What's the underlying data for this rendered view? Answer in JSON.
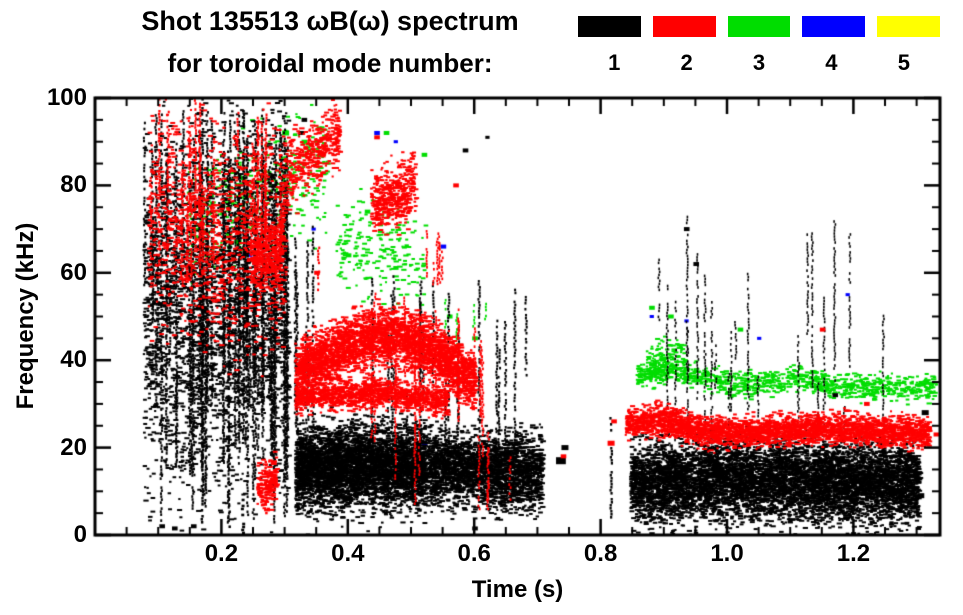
{
  "header": {
    "title_line1": "Shot 135513 ωB(ω) spectrum",
    "title_line2": "for toroidal mode number:"
  },
  "legend": {
    "modes": [
      {
        "label": "1",
        "color": "#000000"
      },
      {
        "label": "2",
        "color": "#ff0000"
      },
      {
        "label": "3",
        "color": "#00dd00"
      },
      {
        "label": "4",
        "color": "#0000ff"
      },
      {
        "label": "5",
        "color": "#ffff00"
      }
    ]
  },
  "chart_data": {
    "type": "scatter",
    "title": "Shot 135513 ωB(ω) spectrum for toroidal mode number",
    "xlabel": "Time (s)",
    "ylabel": "Frequency (kHz)",
    "xlim": [
      0,
      1.337
    ],
    "ylim": [
      0,
      100
    ],
    "xticks": [
      0.2,
      0.4,
      0.6,
      0.8,
      1.0,
      1.2
    ],
    "xtick_labels": [
      "0.2",
      "0.4",
      "0.6",
      "0.8",
      "1.0",
      "1.2"
    ],
    "x_minor_step": 0.05,
    "yticks": [
      0,
      20,
      40,
      60,
      80,
      100
    ],
    "ytick_labels": [
      "0",
      "20",
      "40",
      "60",
      "80",
      "100"
    ],
    "y_minor_step": 5,
    "grid": false,
    "legend_position": "top-right",
    "draw_order": [
      "n=5",
      "n=4",
      "n=3",
      "n=1",
      "n=2"
    ],
    "series": [
      {
        "name": "n=1",
        "mode": 1,
        "color": "#000000",
        "clouds": [
          {
            "t0": 0.075,
            "t1": 0.305,
            "center": [
              [
                0.075,
                50
              ],
              [
                0.305,
                55
              ]
            ],
            "spread": 20,
            "n": 2600,
            "size": 2
          },
          {
            "t0": 0.315,
            "t1": 0.705,
            "center": [
              [
                0.315,
                15
              ],
              [
                0.4,
                16
              ],
              [
                0.5,
                16
              ],
              [
                0.6,
                15
              ],
              [
                0.705,
                14
              ]
            ],
            "spread": 4.2,
            "n": 5200,
            "size": 2
          },
          {
            "t0": 0.315,
            "t1": 0.52,
            "center": [
              [
                0.315,
                15
              ],
              [
                0.52,
                16
              ]
            ],
            "spread": 5.2,
            "n": 1500,
            "size": 2
          },
          {
            "t0": 0.845,
            "t1": 1.302,
            "center": [
              [
                0.845,
                12
              ],
              [
                1.0,
                13
              ],
              [
                1.302,
                12
              ]
            ],
            "spread": 4.5,
            "n": 7000,
            "size": 2
          }
        ],
        "streak_groups": [
          {
            "t0": 0.075,
            "t1": 0.305,
            "count": 70,
            "fmin": 2,
            "fmax": 99,
            "minspan": 15,
            "maxspan": 80,
            "w": 2
          },
          {
            "t0": 0.315,
            "t1": 0.35,
            "count": 6,
            "fmin": 18,
            "fmax": 76,
            "minspan": 25,
            "maxspan": 50,
            "w": 2
          },
          {
            "t0": 0.43,
            "t1": 0.72,
            "count": 20,
            "fmin": 10,
            "fmax": 62,
            "minspan": 15,
            "maxspan": 45,
            "w": 2
          },
          {
            "t0": 0.86,
            "t1": 1.28,
            "count": 24,
            "fmin": 12,
            "fmax": 74,
            "minspan": 8,
            "maxspan": 40,
            "w": 1.6
          }
        ],
        "streaks": [
          {
            "t": 0.095,
            "f0": 30,
            "f1": 97,
            "w": 2
          },
          {
            "t": 0.168,
            "f0": 3,
            "f1": 100,
            "w": 2.4
          },
          {
            "t": 0.176,
            "f0": 30,
            "f1": 97,
            "w": 2
          },
          {
            "t": 0.21,
            "f0": 2,
            "f1": 88,
            "w": 2.4
          },
          {
            "t": 0.232,
            "f0": 0,
            "f1": 9,
            "w": 3
          },
          {
            "t": 0.25,
            "f0": 35,
            "f1": 65,
            "w": 2
          },
          {
            "t": 0.815,
            "f0": 4,
            "f1": 27,
            "w": 2.2
          }
        ],
        "dots": [
          [
            0.735,
            17,
            7
          ],
          [
            0.742,
            20,
            5
          ],
          [
            1.312,
            28,
            5
          ],
          [
            1.305,
            9,
            5
          ],
          [
            0.105,
            2,
            4
          ],
          [
            0.125,
            1.5,
            4
          ],
          [
            0.155,
            2,
            4
          ],
          [
            0.6,
            1.5,
            4
          ],
          [
            0.64,
            13,
            4
          ],
          [
            1.17,
            32,
            4
          ],
          [
            0.95,
            62,
            4
          ],
          [
            0.935,
            70,
            4
          ],
          [
            0.585,
            88,
            4
          ],
          [
            0.62,
            91,
            3
          ],
          [
            0.325,
            92,
            4
          ],
          [
            0.33,
            95,
            4
          ]
        ]
      },
      {
        "name": "n=2",
        "mode": 2,
        "color": "#ff0000",
        "clouds": [
          {
            "t0": 0.082,
            "t1": 0.3,
            "center": [
              [
                0.082,
                72
              ],
              [
                0.3,
                66
              ]
            ],
            "spread": 12,
            "n": 1100,
            "size": 2
          },
          {
            "t0": 0.245,
            "t1": 0.295,
            "center": [
              [
                0.245,
                64
              ],
              [
                0.295,
                66
              ]
            ],
            "spread": 4,
            "n": 350,
            "size": 2
          },
          {
            "t0": 0.295,
            "t1": 0.385,
            "center": [
              [
                0.295,
                82
              ],
              [
                0.385,
                92
              ]
            ],
            "spread": 4,
            "n": 420,
            "size": 2
          },
          {
            "t0": 0.435,
            "t1": 0.505,
            "center": [
              [
                0.435,
                76
              ],
              [
                0.505,
                80
              ]
            ],
            "spread": 3.5,
            "n": 420,
            "size": 2
          },
          {
            "t0": 0.315,
            "t1": 0.6,
            "center": [
              [
                0.315,
                37
              ],
              [
                0.4,
                44
              ],
              [
                0.47,
                46
              ],
              [
                0.53,
                43
              ],
              [
                0.6,
                35
              ]
            ],
            "spread": 3.2,
            "n": 3200,
            "size": 2
          },
          {
            "t0": 0.315,
            "t1": 0.555,
            "center": [
              [
                0.315,
                31.5
              ],
              [
                0.45,
                33
              ],
              [
                0.555,
                30.5
              ]
            ],
            "spread": 1.6,
            "n": 1200,
            "size": 2
          },
          {
            "t0": 0.255,
            "t1": 0.285,
            "center": [
              [
                0.255,
                11
              ],
              [
                0.285,
                13
              ]
            ],
            "spread": 2.5,
            "n": 180,
            "size": 2
          },
          {
            "t0": 0.838,
            "t1": 1.318,
            "center": [
              [
                0.838,
                26
              ],
              [
                0.9,
                26.5
              ],
              [
                0.96,
                23.5
              ],
              [
                1.05,
                24
              ],
              [
                1.15,
                24.5
              ],
              [
                1.25,
                24
              ],
              [
                1.318,
                23.5
              ]
            ],
            "spread": 1.7,
            "n": 3000,
            "size": 2
          }
        ],
        "streak_groups": [
          {
            "t0": 0.085,
            "t1": 0.3,
            "count": 26,
            "fmin": 55,
            "fmax": 100,
            "minspan": 8,
            "maxspan": 38,
            "w": 2
          },
          {
            "t0": 0.4,
            "t1": 0.645,
            "count": 16,
            "fmin": 5,
            "fmax": 56,
            "minspan": 12,
            "maxspan": 45,
            "w": 1.8
          },
          {
            "t0": 0.52,
            "t1": 0.6,
            "count": 6,
            "fmin": 55,
            "fmax": 70,
            "minspan": 5,
            "maxspan": 12,
            "w": 1.8
          }
        ],
        "streaks": [
          {
            "t": 0.1,
            "f0": 60,
            "f1": 100,
            "w": 2.2
          },
          {
            "t": 0.268,
            "f0": 5,
            "f1": 17,
            "w": 2.5
          },
          {
            "t": 0.352,
            "f0": 56,
            "f1": 66,
            "w": 2
          },
          {
            "t": 0.62,
            "f0": 6,
            "f1": 20,
            "w": 2
          },
          {
            "t": 0.655,
            "f0": 8,
            "f1": 18,
            "w": 1.8
          }
        ],
        "dots": [
          [
            0.815,
            21,
            5
          ],
          [
            0.82,
            26,
            4
          ],
          [
            1.15,
            47,
            4
          ],
          [
            1.22,
            30,
            4
          ],
          [
            0.74,
            18,
            4
          ],
          [
            1.33,
            23,
            4
          ],
          [
            0.57,
            80,
            4
          ],
          [
            0.445,
            91,
            4
          ],
          [
            0.35,
            60,
            4
          ]
        ]
      },
      {
        "name": "n=3",
        "mode": 3,
        "color": "#00dd00",
        "clouds": [
          {
            "t0": 0.145,
            "t1": 0.365,
            "center": [
              [
                0.145,
                72
              ],
              [
                0.25,
                78
              ],
              [
                0.365,
                86
              ]
            ],
            "spread": 7,
            "n": 420,
            "size": 2
          },
          {
            "t0": 0.38,
            "t1": 0.52,
            "center": [
              [
                0.38,
                68
              ],
              [
                0.52,
                63
              ]
            ],
            "spread": 5,
            "n": 200,
            "size": 2
          },
          {
            "t0": 0.855,
            "t1": 1.33,
            "center": [
              [
                0.855,
                37
              ],
              [
                0.92,
                38
              ],
              [
                1.0,
                34.5
              ],
              [
                1.1,
                36
              ],
              [
                1.2,
                34
              ],
              [
                1.33,
                34
              ]
            ],
            "spread": 1.4,
            "n": 1000,
            "size": 2
          },
          {
            "t0": 0.87,
            "t1": 0.93,
            "center": [
              [
                0.87,
                40
              ],
              [
                0.93,
                42
              ]
            ],
            "spread": 2,
            "n": 120,
            "size": 2
          }
        ],
        "streak_groups": [
          {
            "t0": 0.55,
            "t1": 0.62,
            "count": 4,
            "fmin": 42,
            "fmax": 58,
            "minspan": 4,
            "maxspan": 10,
            "w": 1.8
          }
        ],
        "streaks": [],
        "dots": [
          [
            0.3,
            92,
            5
          ],
          [
            0.33,
            90,
            4
          ],
          [
            0.46,
            92,
            4
          ],
          [
            0.52,
            87,
            4
          ],
          [
            0.225,
            67,
            5
          ],
          [
            0.56,
            50,
            4
          ],
          [
            0.6,
            45,
            4
          ],
          [
            0.88,
            52,
            4
          ],
          [
            0.91,
            50,
            4
          ],
          [
            1.02,
            47,
            4
          ],
          [
            0.43,
            74,
            4
          ],
          [
            0.4,
            64,
            4
          ]
        ]
      },
      {
        "name": "n=4",
        "mode": 4,
        "color": "#0000ff",
        "clouds": [],
        "streak_groups": [],
        "streaks": [],
        "dots": [
          [
            0.445,
            92,
            4
          ],
          [
            0.475,
            90,
            3
          ],
          [
            0.55,
            66,
            4
          ],
          [
            0.52,
            21,
            4
          ],
          [
            0.345,
            70,
            3
          ],
          [
            0.88,
            50,
            3
          ],
          [
            0.935,
            49,
            3
          ],
          [
            1.19,
            55,
            3
          ],
          [
            0.635,
            17,
            3
          ],
          [
            1.05,
            45,
            3
          ],
          [
            0.245,
            64,
            3
          ]
        ]
      },
      {
        "name": "n=5",
        "mode": 5,
        "color": "#ffff00",
        "clouds": [],
        "streak_groups": [],
        "streaks": [],
        "dots": []
      }
    ]
  },
  "render": {
    "seed": 1337
  }
}
